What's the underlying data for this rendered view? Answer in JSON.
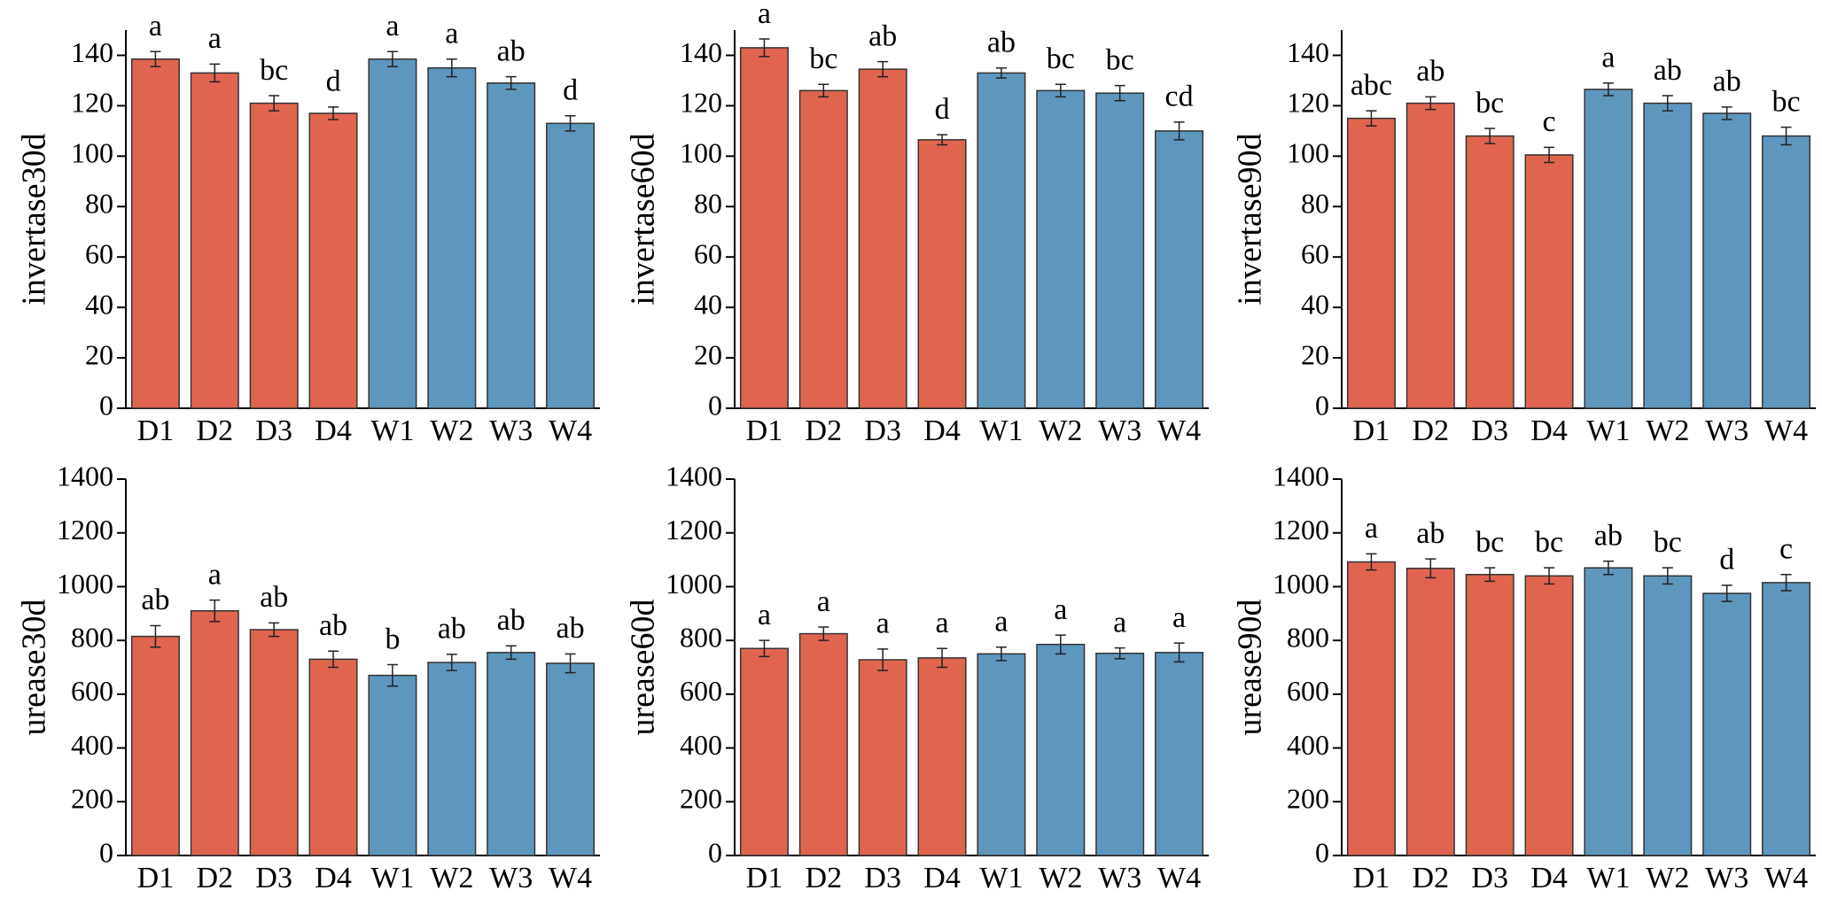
{
  "chart_data": [
    {
      "type": "bar",
      "y_label": "invertase30d",
      "categories": [
        "D1",
        "D2",
        "D3",
        "D4",
        "W1",
        "W2",
        "W3",
        "W4"
      ],
      "values": [
        138.5,
        133,
        121,
        117,
        138.5,
        135,
        129,
        113
      ],
      "errors": [
        3,
        3.5,
        3,
        2.5,
        3,
        3.5,
        2.5,
        3
      ],
      "annotations": [
        "a",
        "a",
        "bc",
        "d",
        "a",
        "a",
        "ab",
        "d"
      ],
      "colors": [
        "#e0654f",
        "#e0654f",
        "#e0654f",
        "#e0654f",
        "#5e97bd",
        "#5e97bd",
        "#5e97bd",
        "#5e97bd"
      ],
      "ylim": [
        0,
        150
      ],
      "yticks": [
        0,
        20,
        40,
        60,
        80,
        100,
        120,
        140
      ]
    },
    {
      "type": "bar",
      "y_label": "invertase60d",
      "categories": [
        "D1",
        "D2",
        "D3",
        "D4",
        "W1",
        "W2",
        "W3",
        "W4"
      ],
      "values": [
        143,
        126,
        134.5,
        106.5,
        133,
        126,
        125,
        110
      ],
      "errors": [
        3.5,
        2.5,
        3,
        2,
        2,
        2.5,
        3,
        3.5
      ],
      "annotations": [
        "a",
        "bc",
        "ab",
        "d",
        "ab",
        "bc",
        "bc",
        "cd"
      ],
      "colors": [
        "#e0654f",
        "#e0654f",
        "#e0654f",
        "#e0654f",
        "#5e97bd",
        "#5e97bd",
        "#5e97bd",
        "#5e97bd"
      ],
      "ylim": [
        0,
        150
      ],
      "yticks": [
        0,
        20,
        40,
        60,
        80,
        100,
        120,
        140
      ]
    },
    {
      "type": "bar",
      "y_label": "invertase90d",
      "categories": [
        "D1",
        "D2",
        "D3",
        "D4",
        "W1",
        "W2",
        "W3",
        "W4"
      ],
      "values": [
        115,
        121,
        108,
        100.5,
        126.5,
        121,
        117,
        108
      ],
      "errors": [
        3,
        2.5,
        3,
        3,
        2.5,
        3,
        2.5,
        3.5
      ],
      "annotations": [
        "abc",
        "ab",
        "bc",
        "c",
        "a",
        "ab",
        "ab",
        "bc"
      ],
      "colors": [
        "#e0654f",
        "#e0654f",
        "#e0654f",
        "#e0654f",
        "#5e97bd",
        "#5e97bd",
        "#5e97bd",
        "#5e97bd"
      ],
      "ylim": [
        0,
        150
      ],
      "yticks": [
        0,
        20,
        40,
        60,
        80,
        100,
        120,
        140
      ]
    },
    {
      "type": "bar",
      "y_label": "urease30d",
      "categories": [
        "D1",
        "D2",
        "D3",
        "D4",
        "W1",
        "W2",
        "W3",
        "W4"
      ],
      "values": [
        815,
        910,
        840,
        730,
        670,
        718,
        755,
        715
      ],
      "errors": [
        40,
        40,
        25,
        30,
        40,
        30,
        25,
        35
      ],
      "annotations": [
        "ab",
        "a",
        "ab",
        "ab",
        "b",
        "ab",
        "ab",
        "ab"
      ],
      "colors": [
        "#e0654f",
        "#e0654f",
        "#e0654f",
        "#e0654f",
        "#5e97bd",
        "#5e97bd",
        "#5e97bd",
        "#5e97bd"
      ],
      "ylim": [
        0,
        1400
      ],
      "yticks": [
        0,
        200,
        400,
        600,
        800,
        1000,
        1200,
        1400
      ]
    },
    {
      "type": "bar",
      "y_label": "urease60d",
      "categories": [
        "D1",
        "D2",
        "D3",
        "D4",
        "W1",
        "W2",
        "W3",
        "W4"
      ],
      "values": [
        770,
        825,
        728,
        735,
        750,
        785,
        752,
        755
      ],
      "errors": [
        30,
        25,
        40,
        35,
        25,
        35,
        20,
        35
      ],
      "annotations": [
        "a",
        "a",
        "a",
        "a",
        "a",
        "a",
        "a",
        "a"
      ],
      "colors": [
        "#e0654f",
        "#e0654f",
        "#e0654f",
        "#e0654f",
        "#5e97bd",
        "#5e97bd",
        "#5e97bd",
        "#5e97bd"
      ],
      "ylim": [
        0,
        1400
      ],
      "yticks": [
        0,
        200,
        400,
        600,
        800,
        1000,
        1200,
        1400
      ]
    },
    {
      "type": "bar",
      "y_label": "urease90d",
      "categories": [
        "D1",
        "D2",
        "D3",
        "D4",
        "W1",
        "W2",
        "W3",
        "W4"
      ],
      "values": [
        1092,
        1068,
        1045,
        1040,
        1070,
        1040,
        975,
        1015
      ],
      "errors": [
        30,
        35,
        25,
        30,
        25,
        30,
        30,
        30
      ],
      "annotations": [
        "a",
        "ab",
        "bc",
        "bc",
        "ab",
        "bc",
        "d",
        "c"
      ],
      "colors": [
        "#e0654f",
        "#e0654f",
        "#e0654f",
        "#e0654f",
        "#5e97bd",
        "#5e97bd",
        "#5e97bd",
        "#5e97bd"
      ],
      "ylim": [
        0,
        1400
      ],
      "yticks": [
        0,
        200,
        400,
        600,
        800,
        1000,
        1200,
        1400
      ]
    }
  ]
}
